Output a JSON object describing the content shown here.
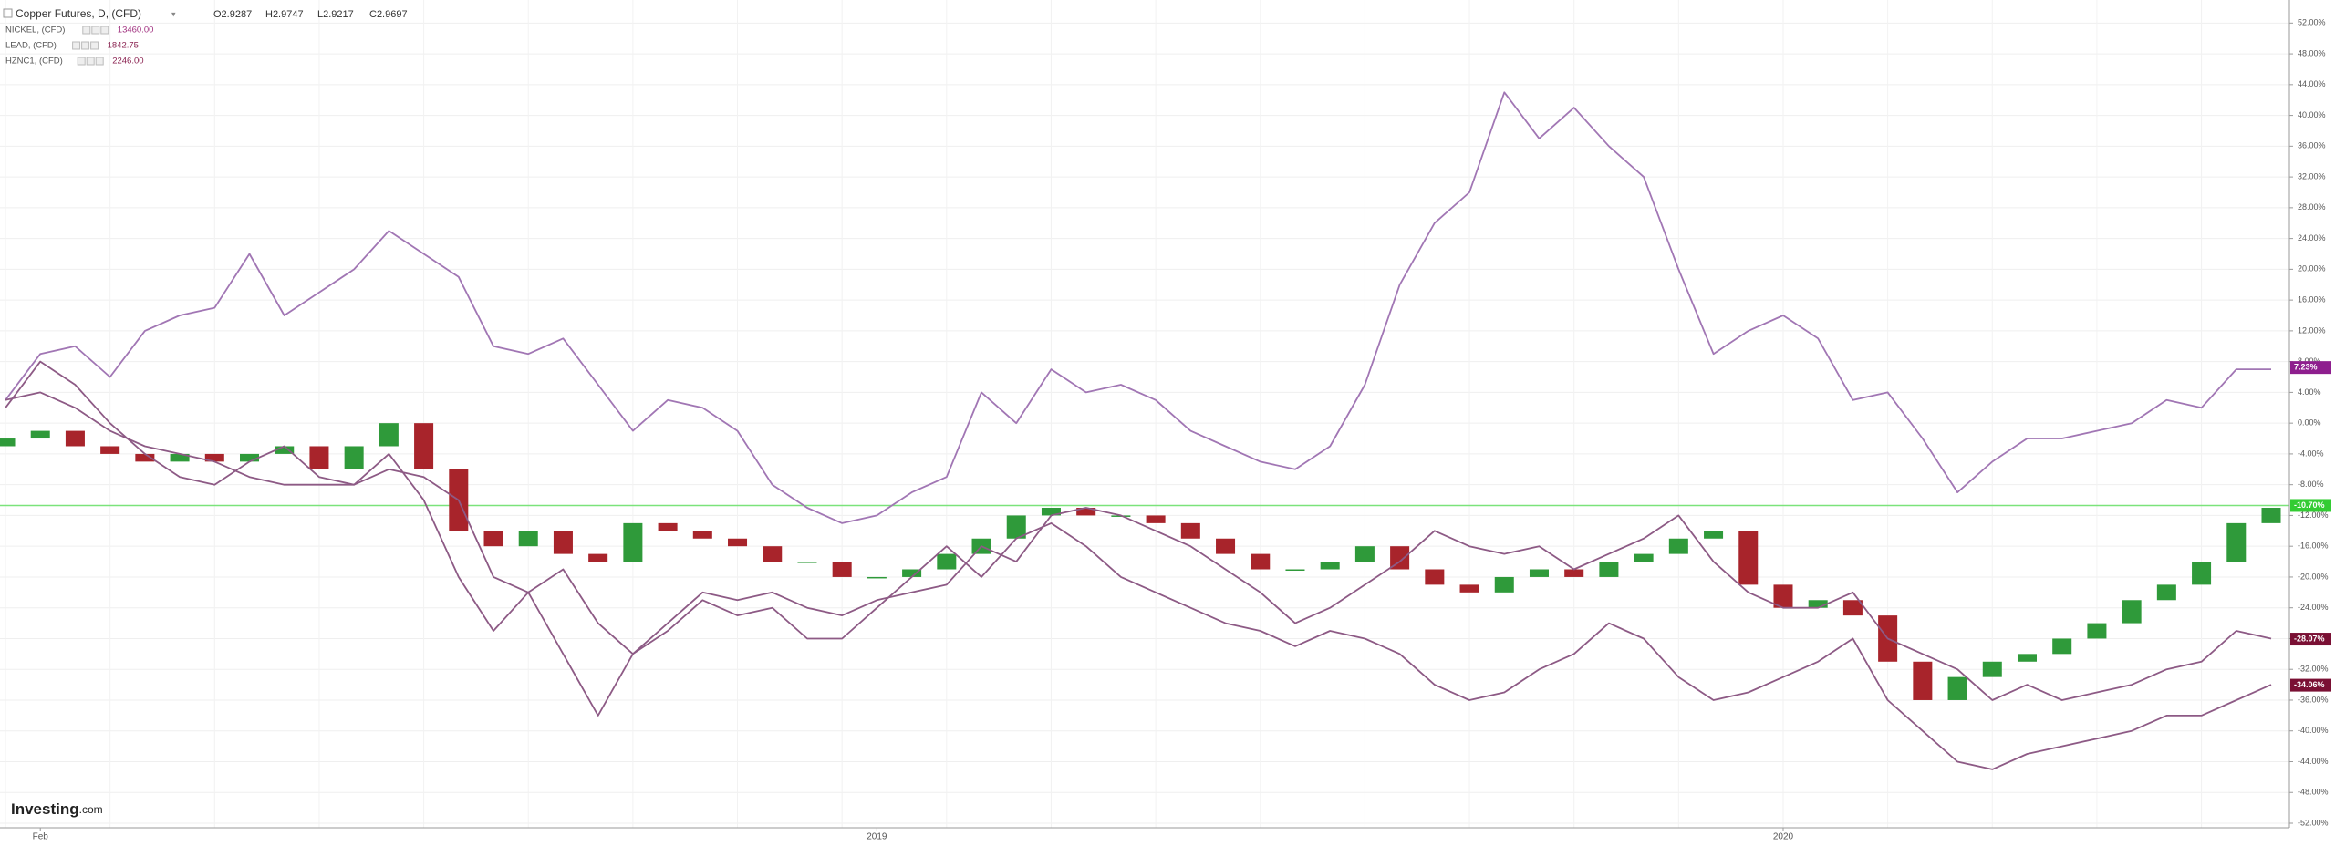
{
  "chart_data": {
    "type": "line",
    "title": "Copper Futures, D, (CFD)",
    "ohlc": [
      "O2.9287",
      "H2.9747",
      "L2.9217",
      "C2.9697"
    ],
    "categories": [
      null,
      "Feb",
      null,
      null,
      null,
      null,
      null,
      null,
      null,
      null,
      null,
      null,
      null,
      null,
      null,
      null,
      null,
      null,
      null,
      null,
      null,
      null,
      null,
      null,
      null,
      "2019",
      null,
      null,
      null,
      null,
      null,
      null,
      null,
      null,
      null,
      null,
      null,
      null,
      null,
      null,
      null,
      null,
      null,
      null,
      null,
      null,
      null,
      null,
      null,
      null,
      null,
      "2020",
      null,
      null,
      null,
      null,
      null,
      null,
      null,
      null,
      null,
      null,
      null,
      null,
      null,
      null
    ],
    "series": [
      {
        "name": "Copper Futures, D, (CFD)",
        "type": "candlestick",
        "up_color": "#2f9a3a",
        "down_color": "#a8242b",
        "open": [
          -3,
          -2,
          -1,
          -3,
          -4,
          -5,
          -4,
          -5,
          -4,
          -3,
          -6,
          -3,
          0,
          -6,
          -14,
          -16,
          -14,
          -17,
          -18,
          -13,
          -14,
          -15,
          -16,
          -18,
          -18,
          -20,
          -20,
          -19,
          -17,
          -15,
          -12,
          -11,
          -12,
          -12,
          -13,
          -15,
          -17,
          -19,
          -19,
          -18,
          -16,
          -19,
          -21,
          -22,
          -20,
          -19,
          -20,
          -18,
          -17,
          -15,
          -14,
          -21,
          -24,
          -23,
          -25,
          -31,
          -36,
          -33,
          -31,
          -30,
          -28,
          -26,
          -23,
          -21,
          -18,
          -13
        ],
        "values": [
          -2,
          -1,
          -3,
          -4,
          -5,
          -4,
          -5,
          -4,
          -3,
          -6,
          -3,
          0,
          -6,
          -14,
          -16,
          -14,
          -17,
          -18,
          -13,
          -14,
          -15,
          -16,
          -18,
          -18,
          -20,
          -20,
          -19,
          -17,
          -15,
          -12,
          -11,
          -12,
          -12,
          -13,
          -15,
          -17,
          -19,
          -19,
          -18,
          -16,
          -19,
          -21,
          -22,
          -20,
          -19,
          -20,
          -18,
          -17,
          -15,
          -14,
          -21,
          -24,
          -23,
          -25,
          -31,
          -36,
          -33,
          -31,
          -30,
          -28,
          -26,
          -23,
          -21,
          -18,
          -13,
          -11
        ]
      },
      {
        "name": "NICKEL, (CFD)",
        "last": "13460.00",
        "color": "#a176b4",
        "legend_color": "#a0307f",
        "values": [
          3,
          9,
          10,
          6,
          12,
          14,
          15,
          22,
          14,
          17,
          20,
          25,
          22,
          19,
          10,
          9,
          11,
          5,
          -1,
          3,
          2,
          -1,
          -8,
          -11,
          -13,
          -12,
          -9,
          -7,
          4,
          0,
          7,
          4,
          5,
          3,
          -1,
          -3,
          -5,
          -6,
          -3,
          5,
          18,
          26,
          30,
          43,
          37,
          41,
          36,
          32,
          20,
          9,
          12,
          14,
          11,
          3,
          4,
          -2,
          -9,
          -5,
          -2,
          -2,
          -1,
          0,
          3,
          2,
          7,
          7
        ]
      },
      {
        "name": "LEAD, (CFD)",
        "last": "1842.75",
        "color": "#8d5a85",
        "legend_color": "#8a2250",
        "values": [
          3,
          4,
          2,
          -1,
          -3,
          -4,
          -5,
          -7,
          -8,
          -8,
          -8,
          -6,
          -7,
          -10,
          -20,
          -22,
          -19,
          -26,
          -30,
          -26,
          -22,
          -23,
          -22,
          -24,
          -25,
          -23,
          -22,
          -21,
          -16,
          -18,
          -12,
          -11,
          -12,
          -14,
          -16,
          -19,
          -22,
          -26,
          -24,
          -21,
          -18,
          -14,
          -16,
          -17,
          -16,
          -19,
          -17,
          -15,
          -12,
          -18,
          -22,
          -24,
          -24,
          -22,
          -28,
          -30,
          -32,
          -36,
          -34,
          -36,
          -35,
          -34,
          -32,
          -31,
          -27,
          -28
        ]
      },
      {
        "name": "HZNC1, (CFD)",
        "last": "2246.00",
        "color": "#8d5a85",
        "legend_color": "#8a2250",
        "values": [
          2,
          8,
          5,
          0,
          -4,
          -7,
          -8,
          -5,
          -3,
          -7,
          -8,
          -4,
          -10,
          -20,
          -27,
          -22,
          -30,
          -38,
          -30,
          -27,
          -23,
          -25,
          -24,
          -28,
          -28,
          -24,
          -20,
          -16,
          -20,
          -15,
          -13,
          -16,
          -20,
          -22,
          -24,
          -26,
          -27,
          -29,
          -27,
          -28,
          -30,
          -34,
          -36,
          -35,
          -32,
          -30,
          -26,
          -28,
          -33,
          -36,
          -35,
          -33,
          -31,
          -28,
          -36,
          -40,
          -44,
          -45,
          -43,
          -42,
          -41,
          -40,
          -38,
          -38,
          -36,
          -34
        ]
      }
    ],
    "ylim": [
      -52,
      55
    ],
    "yticks": [
      {
        "value": -52,
        "label": "-52.00%"
      },
      {
        "value": -48,
        "label": "-48.00%"
      },
      {
        "value": -44,
        "label": "-44.00%"
      },
      {
        "value": -40,
        "label": "-40.00%"
      },
      {
        "value": -36,
        "label": "-36.00%"
      },
      {
        "value": -32,
        "label": "-32.00%"
      },
      {
        "value": -28,
        "label": "-28.00%"
      },
      {
        "value": -24,
        "label": "-24.00%"
      },
      {
        "value": -20,
        "label": "-20.00%"
      },
      {
        "value": -16,
        "label": "-16.00%"
      },
      {
        "value": -12,
        "label": "-12.00%"
      },
      {
        "value": -8,
        "label": "-8.00%"
      },
      {
        "value": -4,
        "label": "-4.00%"
      },
      {
        "value": 0,
        "label": "0.00%"
      },
      {
        "value": 4,
        "label": "4.00%"
      },
      {
        "value": 8,
        "label": "8.00%"
      },
      {
        "value": 12,
        "label": "12.00%"
      },
      {
        "value": 16,
        "label": "16.00%"
      },
      {
        "value": 20,
        "label": "20.00%"
      },
      {
        "value": 24,
        "label": "24.00%"
      },
      {
        "value": 28,
        "label": "28.00%"
      },
      {
        "value": 32,
        "label": "32.00%"
      },
      {
        "value": 36,
        "label": "36.00%"
      },
      {
        "value": 40,
        "label": "40.00%"
      },
      {
        "value": 44,
        "label": "44.00%"
      },
      {
        "value": 48,
        "label": "48.00%"
      },
      {
        "value": 52,
        "label": "52.00%"
      }
    ],
    "grid": true,
    "price_line": {
      "value": -10.7,
      "color": "#7be37b"
    },
    "price_labels": [
      {
        "value": 7.23,
        "label": "7.23%",
        "color": "#8e1e8e"
      },
      {
        "value": -10.7,
        "label": "-10.70%",
        "color": "#33cc33"
      },
      {
        "value": -28.07,
        "label": "-28.07%",
        "color": "#7a1034"
      },
      {
        "value": -34.06,
        "label": "-34.06%",
        "color": "#7a1034"
      }
    ],
    "logo": {
      "brand": "Investing",
      "suffix": ".com"
    }
  }
}
